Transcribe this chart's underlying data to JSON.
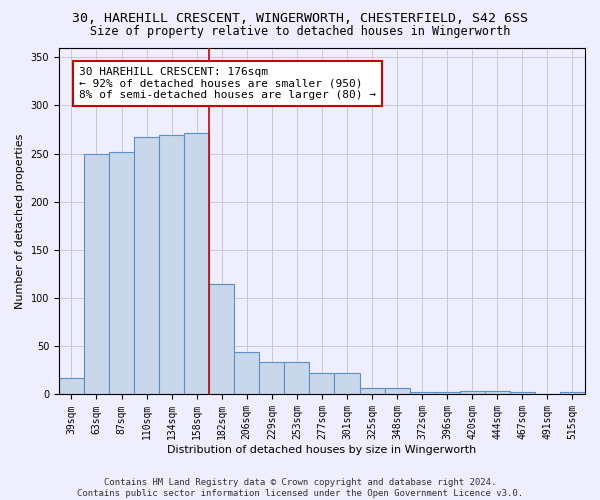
{
  "title1": "30, HAREHILL CRESCENT, WINGERWORTH, CHESTERFIELD, S42 6SS",
  "title2": "Size of property relative to detached houses in Wingerworth",
  "xlabel": "Distribution of detached houses by size in Wingerworth",
  "ylabel": "Number of detached properties",
  "bar_labels": [
    "39sqm",
    "63sqm",
    "87sqm",
    "110sqm",
    "134sqm",
    "158sqm",
    "182sqm",
    "206sqm",
    "229sqm",
    "253sqm",
    "277sqm",
    "301sqm",
    "325sqm",
    "348sqm",
    "372sqm",
    "396sqm",
    "420sqm",
    "444sqm",
    "467sqm",
    "491sqm",
    "515sqm"
  ],
  "bar_values": [
    17,
    250,
    252,
    267,
    269,
    271,
    115,
    44,
    34,
    34,
    22,
    22,
    7,
    7,
    3,
    3,
    4,
    4,
    3,
    0,
    3
  ],
  "bar_color": "#c8d8ea",
  "bar_edge_color": "#5b8fc7",
  "bar_edge_width": 0.8,
  "vline_x_idx": 6,
  "vline_color": "#cc0000",
  "annotation_line1": "30 HAREHILL CRESCENT: 176sqm",
  "annotation_line2": "← 92% of detached houses are smaller (950)",
  "annotation_line3": "8% of semi-detached houses are larger (80) →",
  "annotation_box_color": "white",
  "annotation_box_edge": "#cc0000",
  "ylim": [
    0,
    360
  ],
  "yticks": [
    0,
    50,
    100,
    150,
    200,
    250,
    300,
    350
  ],
  "grid_color": "#c8c8d8",
  "bg_color": "#eeeeff",
  "footer": "Contains HM Land Registry data © Crown copyright and database right 2024.\nContains public sector information licensed under the Open Government Licence v3.0.",
  "title1_fontsize": 9.5,
  "title2_fontsize": 8.5,
  "xlabel_fontsize": 8,
  "ylabel_fontsize": 8,
  "tick_fontsize": 7,
  "annotation_fontsize": 8,
  "footer_fontsize": 6.5
}
